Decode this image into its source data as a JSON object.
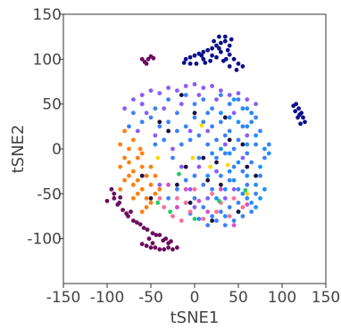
{
  "chart_data": {
    "type": "scatter",
    "title": "",
    "xlabel": "tSNE1",
    "ylabel": "tSNE2",
    "xlim": [
      -150,
      150
    ],
    "ylim": [
      -150,
      150
    ],
    "x_ticks": [
      -150,
      -100,
      -50,
      0,
      50,
      100,
      150
    ],
    "y_ticks": [
      -100,
      -50,
      0,
      50,
      100,
      150
    ],
    "x_tick_labels": [
      "-150",
      "-100",
      "-50",
      "0",
      "50",
      "100",
      "150"
    ],
    "y_tick_labels": [
      "-100",
      "-50",
      "0",
      "50",
      "100",
      "150"
    ],
    "grid": false,
    "legend": "none",
    "series": [
      {
        "color": "#3b82f6",
        "points": [
          [
            -60,
            50
          ],
          [
            -45,
            45
          ],
          [
            -30,
            55
          ],
          [
            -20,
            40
          ],
          [
            -10,
            60
          ],
          [
            0,
            50
          ],
          [
            10,
            55
          ],
          [
            20,
            45
          ],
          [
            30,
            60
          ],
          [
            40,
            50
          ],
          [
            50,
            55
          ],
          [
            60,
            45
          ],
          [
            70,
            35
          ],
          [
            75,
            20
          ],
          [
            70,
            5
          ],
          [
            60,
            -5
          ],
          [
            50,
            10
          ],
          [
            40,
            20
          ],
          [
            30,
            30
          ],
          [
            20,
            25
          ],
          [
            10,
            30
          ],
          [
            0,
            35
          ],
          [
            -10,
            25
          ],
          [
            -20,
            20
          ],
          [
            -30,
            30
          ],
          [
            -40,
            25
          ],
          [
            -50,
            35
          ],
          [
            -60,
            30
          ],
          [
            -70,
            40
          ],
          [
            -75,
            25
          ],
          [
            -15,
            5
          ],
          [
            -5,
            10
          ],
          [
            5,
            15
          ],
          [
            15,
            5
          ],
          [
            25,
            -10
          ],
          [
            35,
            -5
          ],
          [
            45,
            -20
          ],
          [
            55,
            -25
          ],
          [
            65,
            -15
          ],
          [
            75,
            -30
          ],
          [
            80,
            -10
          ],
          [
            85,
            5
          ],
          [
            60,
            -40
          ],
          [
            50,
            -45
          ],
          [
            40,
            -35
          ],
          [
            30,
            -30
          ],
          [
            20,
            -45
          ],
          [
            10,
            -40
          ],
          [
            0,
            -30
          ],
          [
            -10,
            -35
          ],
          [
            -20,
            -45
          ],
          [
            -30,
            -55
          ],
          [
            -20,
            -65
          ],
          [
            -10,
            -60
          ],
          [
            0,
            -55
          ],
          [
            10,
            -65
          ],
          [
            20,
            -75
          ],
          [
            30,
            -70
          ],
          [
            40,
            -65
          ],
          [
            50,
            -60
          ],
          [
            60,
            -55
          ],
          [
            70,
            -50
          ],
          [
            65,
            -70
          ],
          [
            55,
            -75
          ],
          [
            45,
            -80
          ],
          [
            35,
            -85
          ],
          [
            25,
            -80
          ],
          [
            15,
            -85
          ],
          [
            5,
            -78
          ],
          [
            -5,
            -72
          ],
          [
            45,
            0
          ],
          [
            55,
            25
          ],
          [
            65,
            30
          ],
          [
            -35,
            10
          ],
          [
            -45,
            5
          ],
          [
            -25,
            -10
          ],
          [
            15,
            40
          ],
          [
            25,
            10
          ],
          [
            35,
            15
          ],
          [
            5,
            -10
          ]
        ]
      },
      {
        "color": "#8b5cf6",
        "points": [
          [
            -80,
            45
          ],
          [
            -70,
            55
          ],
          [
            -60,
            60
          ],
          [
            -50,
            65
          ],
          [
            -40,
            62
          ],
          [
            -30,
            68
          ],
          [
            -20,
            65
          ],
          [
            -10,
            70
          ],
          [
            0,
            72
          ],
          [
            10,
            68
          ],
          [
            20,
            70
          ],
          [
            30,
            65
          ],
          [
            40,
            60
          ],
          [
            50,
            62
          ],
          [
            60,
            55
          ],
          [
            70,
            50
          ],
          [
            -55,
            40
          ],
          [
            -35,
            45
          ],
          [
            -15,
            50
          ],
          [
            5,
            60
          ],
          [
            25,
            55
          ],
          [
            45,
            40
          ],
          [
            -45,
            15
          ],
          [
            -25,
            0
          ],
          [
            -5,
            20
          ],
          [
            15,
            20
          ],
          [
            35,
            5
          ],
          [
            55,
            -10
          ],
          [
            -15,
            -20
          ],
          [
            5,
            -20
          ],
          [
            25,
            -25
          ],
          [
            45,
            -45
          ],
          [
            -65,
            20
          ],
          [
            -5,
            -45
          ],
          [
            15,
            -55
          ],
          [
            35,
            -55
          ],
          [
            0,
            -65
          ],
          [
            -40,
            -40
          ],
          [
            60,
            15
          ],
          [
            -60,
            50
          ]
        ]
      },
      {
        "color": "#1e90ff",
        "points": [
          [
            30,
            40
          ],
          [
            40,
            35
          ],
          [
            50,
            30
          ],
          [
            60,
            25
          ],
          [
            70,
            15
          ],
          [
            80,
            0
          ],
          [
            75,
            -20
          ],
          [
            70,
            -40
          ],
          [
            60,
            -30
          ],
          [
            50,
            -15
          ],
          [
            40,
            -5
          ],
          [
            30,
            0
          ],
          [
            20,
            -5
          ],
          [
            60,
            5
          ],
          [
            55,
            45
          ],
          [
            45,
            55
          ],
          [
            65,
            -60
          ],
          [
            50,
            -70
          ],
          [
            75,
            -55
          ],
          [
            80,
            -45
          ],
          [
            70,
            -65
          ],
          [
            35,
            -45
          ],
          [
            25,
            -55
          ],
          [
            15,
            -30
          ],
          [
            40,
            -25
          ],
          [
            85,
            -5
          ],
          [
            65,
            40
          ],
          [
            35,
            -75
          ],
          [
            55,
            -50
          ],
          [
            45,
            -35
          ]
        ]
      },
      {
        "color": "#ff7f0e",
        "points": [
          [
            -85,
            -20
          ],
          [
            -80,
            -10
          ],
          [
            -75,
            0
          ],
          [
            -70,
            10
          ],
          [
            -80,
            20
          ],
          [
            -85,
            5
          ],
          [
            -75,
            -30
          ],
          [
            -70,
            -40
          ],
          [
            -65,
            -50
          ],
          [
            -60,
            -45
          ],
          [
            -55,
            -55
          ],
          [
            -50,
            -40
          ],
          [
            -55,
            -30
          ],
          [
            -60,
            -20
          ],
          [
            -65,
            -10
          ],
          [
            -70,
            -25
          ],
          [
            -60,
            -5
          ],
          [
            -50,
            -20
          ],
          [
            -45,
            -30
          ],
          [
            -50,
            -60
          ],
          [
            -45,
            -50
          ],
          [
            -65,
            -35
          ],
          [
            -75,
            -15
          ],
          [
            -80,
            -35
          ],
          [
            -55,
            -65
          ],
          [
            -70,
            -55
          ],
          [
            -40,
            -45
          ],
          [
            -60,
            -70
          ],
          [
            -85,
            -45
          ],
          [
            -62,
            0
          ]
        ]
      },
      {
        "color": "#ff6f91",
        "points": [
          [
            -25,
            -75
          ],
          [
            -15,
            -80
          ],
          [
            -5,
            -70
          ],
          [
            -35,
            -65
          ],
          [
            10,
            -78
          ],
          [
            25,
            -70
          ],
          [
            40,
            -75
          ],
          [
            -20,
            -55
          ],
          [
            0,
            -45
          ],
          [
            30,
            -60
          ],
          [
            -40,
            -55
          ],
          [
            55,
            -65
          ],
          [
            20,
            -50
          ],
          [
            -10,
            -60
          ],
          [
            45,
            -55
          ]
        ]
      },
      {
        "color": "#d94fc4",
        "points": [
          [
            -20,
            -65
          ],
          [
            5,
            -58
          ],
          [
            30,
            -45
          ],
          [
            60,
            -62
          ],
          [
            -30,
            -40
          ],
          [
            15,
            -70
          ],
          [
            -10,
            -45
          ],
          [
            45,
            -85
          ]
        ]
      },
      {
        "color": "#0b0f8c",
        "points": [
          [
            -10,
            100
          ],
          [
            -5,
            102
          ],
          [
            0,
            104
          ],
          [
            5,
            106
          ],
          [
            10,
            108
          ],
          [
            15,
            110
          ],
          [
            20,
            112
          ],
          [
            25,
            115
          ],
          [
            30,
            118
          ],
          [
            35,
            120
          ],
          [
            40,
            115
          ],
          [
            38,
            110
          ],
          [
            30,
            108
          ],
          [
            22,
            120
          ],
          [
            28,
            125
          ],
          [
            35,
            125
          ],
          [
            40,
            105
          ],
          [
            45,
            100
          ],
          [
            50,
            95
          ],
          [
            55,
            92
          ],
          [
            48,
            88
          ],
          [
            40,
            92
          ],
          [
            33,
            98
          ],
          [
            25,
            102
          ],
          [
            18,
            98
          ],
          [
            10,
            100
          ],
          [
            2,
            95
          ],
          [
            -5,
            95
          ],
          [
            -12,
            96
          ],
          [
            20,
            104
          ],
          [
            12,
            96
          ],
          [
            42,
            122
          ],
          [
            36,
            100
          ],
          [
            28,
            112
          ],
          [
            8,
            104
          ],
          [
            116,
            50
          ],
          [
            119,
            45
          ],
          [
            122,
            40
          ],
          [
            124,
            35
          ],
          [
            126,
            30
          ],
          [
            121,
            28
          ],
          [
            118,
            35
          ],
          [
            115,
            42
          ],
          [
            113,
            48
          ],
          [
            120,
            38
          ]
        ]
      },
      {
        "color": "#6b0d5e",
        "points": [
          [
            -60,
            100
          ],
          [
            -57,
            97
          ],
          [
            -53,
            100
          ],
          [
            -50,
            103
          ],
          [
            -47,
            101
          ],
          [
            -55,
            95
          ],
          [
            -95,
            -45
          ],
          [
            -92,
            -55
          ],
          [
            -88,
            -62
          ],
          [
            -82,
            -68
          ],
          [
            -76,
            -75
          ],
          [
            -70,
            -80
          ],
          [
            -62,
            -84
          ],
          [
            -54,
            -90
          ],
          [
            -48,
            -94
          ],
          [
            -40,
            -96
          ],
          [
            -33,
            -100
          ],
          [
            -27,
            -103
          ],
          [
            -92,
            -50
          ],
          [
            -86,
            -60
          ],
          [
            -78,
            -72
          ],
          [
            -66,
            -82
          ],
          [
            -58,
            -88
          ],
          [
            -44,
            -96
          ],
          [
            -36,
            -102
          ],
          [
            -30,
            -105
          ],
          [
            -60,
            -106
          ],
          [
            -55,
            -108
          ],
          [
            -50,
            -110
          ],
          [
            -45,
            -110
          ],
          [
            -40,
            -112
          ],
          [
            -35,
            -112
          ],
          [
            -30,
            -110
          ],
          [
            -25,
            -112
          ],
          [
            -20,
            -110
          ],
          [
            -48,
            -105
          ],
          [
            -85,
            -54
          ],
          [
            -73,
            -70
          ],
          [
            -52,
            -100
          ],
          [
            -100,
            -58
          ]
        ]
      },
      {
        "color": "#ffd700",
        "points": [
          [
            -2,
            -10
          ],
          [
            18,
            -20
          ],
          [
            -42,
            -10
          ],
          [
            38,
            -18
          ],
          [
            8,
            26
          ],
          [
            60,
            -50
          ]
        ]
      },
      {
        "color": "#22cc66",
        "points": [
          [
            -42,
            -60
          ],
          [
            -18,
            -28
          ],
          [
            28,
            -58
          ],
          [
            58,
            -46
          ],
          [
            0,
            -78
          ],
          [
            -28,
            -70
          ]
        ]
      },
      {
        "color": "#1a1040",
        "points": [
          [
            -30,
            20
          ],
          [
            10,
            -10
          ],
          [
            40,
            10
          ],
          [
            -20,
            -40
          ],
          [
            30,
            -40
          ],
          [
            -60,
            -30
          ],
          [
            60,
            -20
          ],
          [
            0,
            40
          ],
          [
            -50,
            -55
          ],
          [
            20,
            -80
          ],
          [
            50,
            -70
          ],
          [
            -10,
            -20
          ],
          [
            35,
            35
          ],
          [
            70,
            -30
          ],
          [
            -40,
            30
          ],
          [
            15,
            -35
          ],
          [
            55,
            5
          ],
          [
            -15,
            60
          ],
          [
            25,
            -15
          ],
          [
            -5,
            -60
          ]
        ]
      }
    ]
  }
}
